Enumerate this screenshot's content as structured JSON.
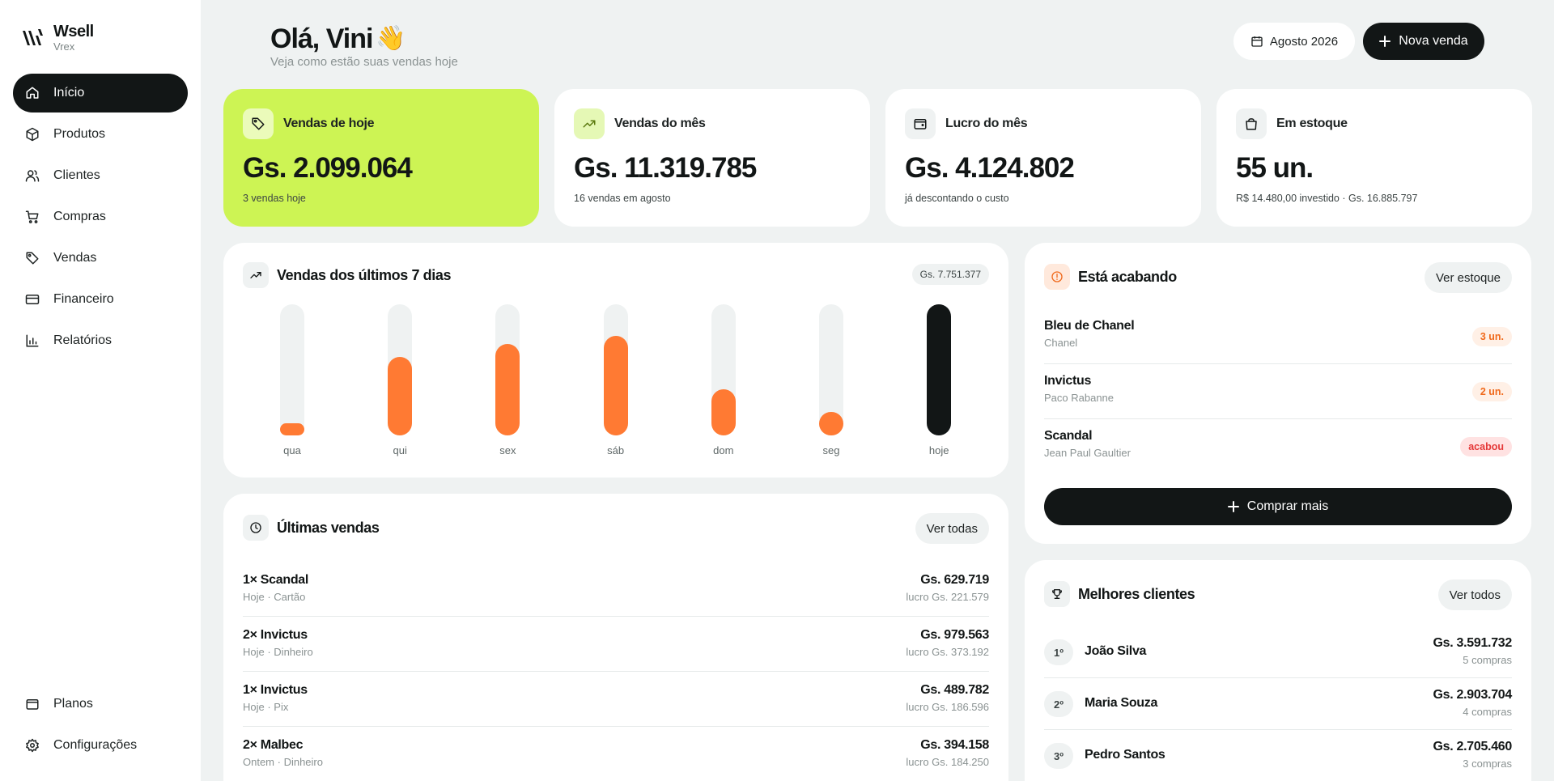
{
  "brand": {
    "name": "Wsell",
    "sub": "Vrex"
  },
  "sidebar": {
    "items": [
      {
        "label": "Início",
        "icon": "home-icon",
        "active": true
      },
      {
        "label": "Produtos",
        "icon": "box-icon"
      },
      {
        "label": "Clientes",
        "icon": "users-icon"
      },
      {
        "label": "Compras",
        "icon": "cart-icon"
      },
      {
        "label": "Vendas",
        "icon": "tag-icon"
      },
      {
        "label": "Financeiro",
        "icon": "credit-card-icon"
      },
      {
        "label": "Relatórios",
        "icon": "bar-chart-icon"
      }
    ],
    "bottom": [
      {
        "label": "Planos",
        "icon": "wallet-icon"
      },
      {
        "label": "Configurações",
        "icon": "gear-icon"
      }
    ]
  },
  "header": {
    "greeting": "Olá, Vini",
    "wave": "👋",
    "subtitle": "Veja como estão suas vendas hoje",
    "date_label": "Agosto 2026",
    "new_sale_label": "Nova venda"
  },
  "stats": [
    {
      "title": "Vendas de hoje",
      "value": "Gs. 2.099.064",
      "sub": "3 vendas hoje",
      "icon": "tag-icon"
    },
    {
      "title": "Vendas do mês",
      "value": "Gs. 11.319.785",
      "sub": "16 vendas em agosto",
      "icon": "trending-up-icon"
    },
    {
      "title": "Lucro do mês",
      "value": "Gs. 4.124.802",
      "sub": "já descontando o custo",
      "icon": "wallet-icon"
    },
    {
      "title": "Em estoque",
      "value": "55 un.",
      "sub": "R$ 14.480,00 investido · Gs. 16.885.797",
      "icon": "bag-icon"
    }
  ],
  "chart": {
    "title": "Vendas dos últimos 7 dias",
    "total": "Gs. 7.751.377"
  },
  "chart_data": {
    "type": "bar",
    "categories": [
      "qua",
      "qui",
      "sex",
      "sáb",
      "dom",
      "seg",
      "hoje"
    ],
    "values": [
      0.09,
      0.6,
      0.7,
      0.76,
      0.35,
      0.18,
      1.0
    ],
    "highlight_index": 6,
    "colors": {
      "bar": "#ff7a33",
      "today": "#121616",
      "track": "#eff2f2"
    }
  },
  "sales": {
    "title": "Últimas vendas",
    "button": "Ver todas",
    "rows": [
      {
        "name": "1× Scandal",
        "meta": "Hoje · Cartão",
        "amount": "Gs. 629.719",
        "profit": "lucro Gs. 221.579"
      },
      {
        "name": "2× Invictus",
        "meta": "Hoje · Dinheiro",
        "amount": "Gs. 979.563",
        "profit": "lucro Gs. 373.192"
      },
      {
        "name": "1× Invictus",
        "meta": "Hoje · Pix",
        "amount": "Gs. 489.782",
        "profit": "lucro Gs. 186.596"
      },
      {
        "name": "2× Malbec",
        "meta": "Ontem · Dinheiro",
        "amount": "Gs. 394.158",
        "profit": "lucro Gs. 184.250"
      }
    ]
  },
  "low_stock": {
    "title": "Está acabando",
    "button": "Ver estoque",
    "rows": [
      {
        "name": "Bleu de Chanel",
        "brand": "Chanel",
        "badge": "3 un.",
        "status": "warn"
      },
      {
        "name": "Invictus",
        "brand": "Paco Rabanne",
        "badge": "2 un.",
        "status": "warn"
      },
      {
        "name": "Scandal",
        "brand": "Jean Paul Gaultier",
        "badge": "acabou",
        "status": "out"
      }
    ],
    "buy_label": "Comprar mais"
  },
  "clients": {
    "title": "Melhores clientes",
    "button": "Ver todos",
    "rows": [
      {
        "rank": "1º",
        "name": "João Silva",
        "amount": "Gs. 3.591.732",
        "count": "5 compras"
      },
      {
        "rank": "2º",
        "name": "Maria Souza",
        "amount": "Gs. 2.903.704",
        "count": "4 compras"
      },
      {
        "rank": "3º",
        "name": "Pedro Santos",
        "amount": "Gs. 2.705.460",
        "count": "3 compras"
      }
    ]
  },
  "colors": {
    "accent": "#cdf454",
    "dark": "#121616",
    "orange": "#ff7a33",
    "background": "#eff2f2"
  }
}
